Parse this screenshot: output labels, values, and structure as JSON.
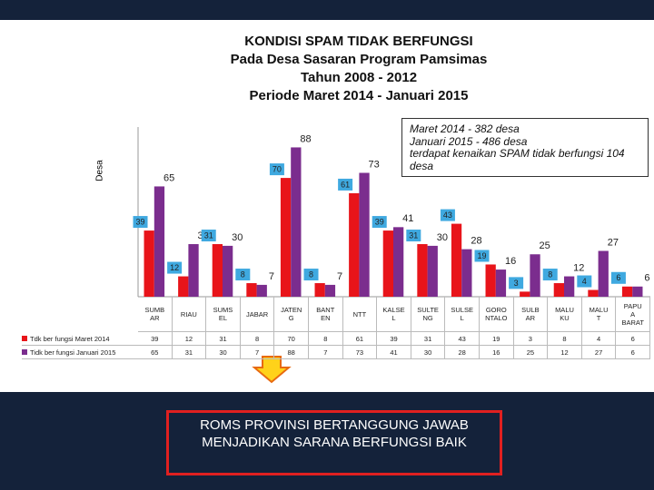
{
  "chart_data": {
    "type": "bar",
    "title": [
      "KONDISI SPAM TIDAK BERFUNGSI",
      "Pada Desa Sasaran Program Pamsimas",
      "Tahun 2008 - 2012",
      "Periode Maret 2014 - Januari 2015"
    ],
    "y_label": "Desa",
    "annotation": [
      "Maret 2014 -  382 desa",
      "Januari 2015  - 486 desa",
      "terdapat kenaikan SPAM tidak berfungsi 104 desa"
    ],
    "categories": [
      "SUMB AR",
      "RIAU",
      "SUMS EL",
      "JABAR",
      "JATEN G",
      "BANT EN",
      "NTT",
      "KALSE L",
      "SULTE NG",
      "SULSE L",
      "GORO NTALO",
      "SULB AR",
      "MALU KU",
      "MALU T",
      "PAPU A BARAT"
    ],
    "series": [
      {
        "name": "Tdk ber fungsi  Maret 2014",
        "color": "#e8141a",
        "values": [
          39,
          12,
          31,
          8,
          70,
          8,
          61,
          39,
          31,
          43,
          19,
          3,
          8,
          4,
          6
        ]
      },
      {
        "name": "Tidk ber fungsi Januari 2015",
        "color": "#7b2d8e",
        "values": [
          65,
          31,
          30,
          7,
          88,
          7,
          73,
          41,
          30,
          28,
          16,
          25,
          12,
          27,
          6
        ]
      }
    ],
    "ylim": [
      0,
      100
    ]
  },
  "footer": "ROMS PROVINSI BERTANGGUNG JAWAB MENJADIKAN SARANA BERFUNGSI BAIK"
}
